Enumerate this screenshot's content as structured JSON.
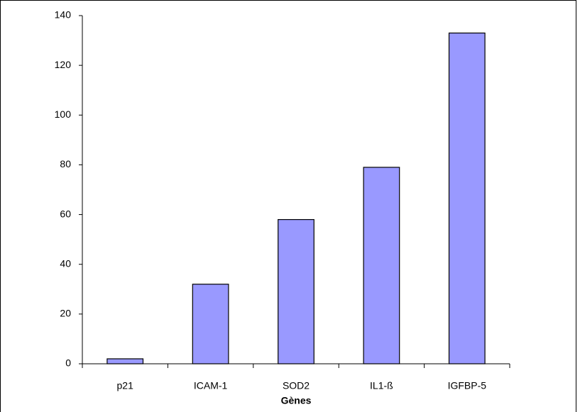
{
  "chart_data": {
    "type": "bar",
    "x_label": "Gènes",
    "categories": [
      "p21",
      "ICAM-1",
      "SOD2",
      "IL1-ß",
      "IGFBP-5"
    ],
    "values": [
      2,
      32,
      58,
      79,
      133
    ],
    "color": "#9999ff",
    "ylim": [
      0,
      140
    ],
    "yticks": [
      0,
      20,
      40,
      60,
      80,
      100,
      120,
      140
    ],
    "grid": false
  }
}
